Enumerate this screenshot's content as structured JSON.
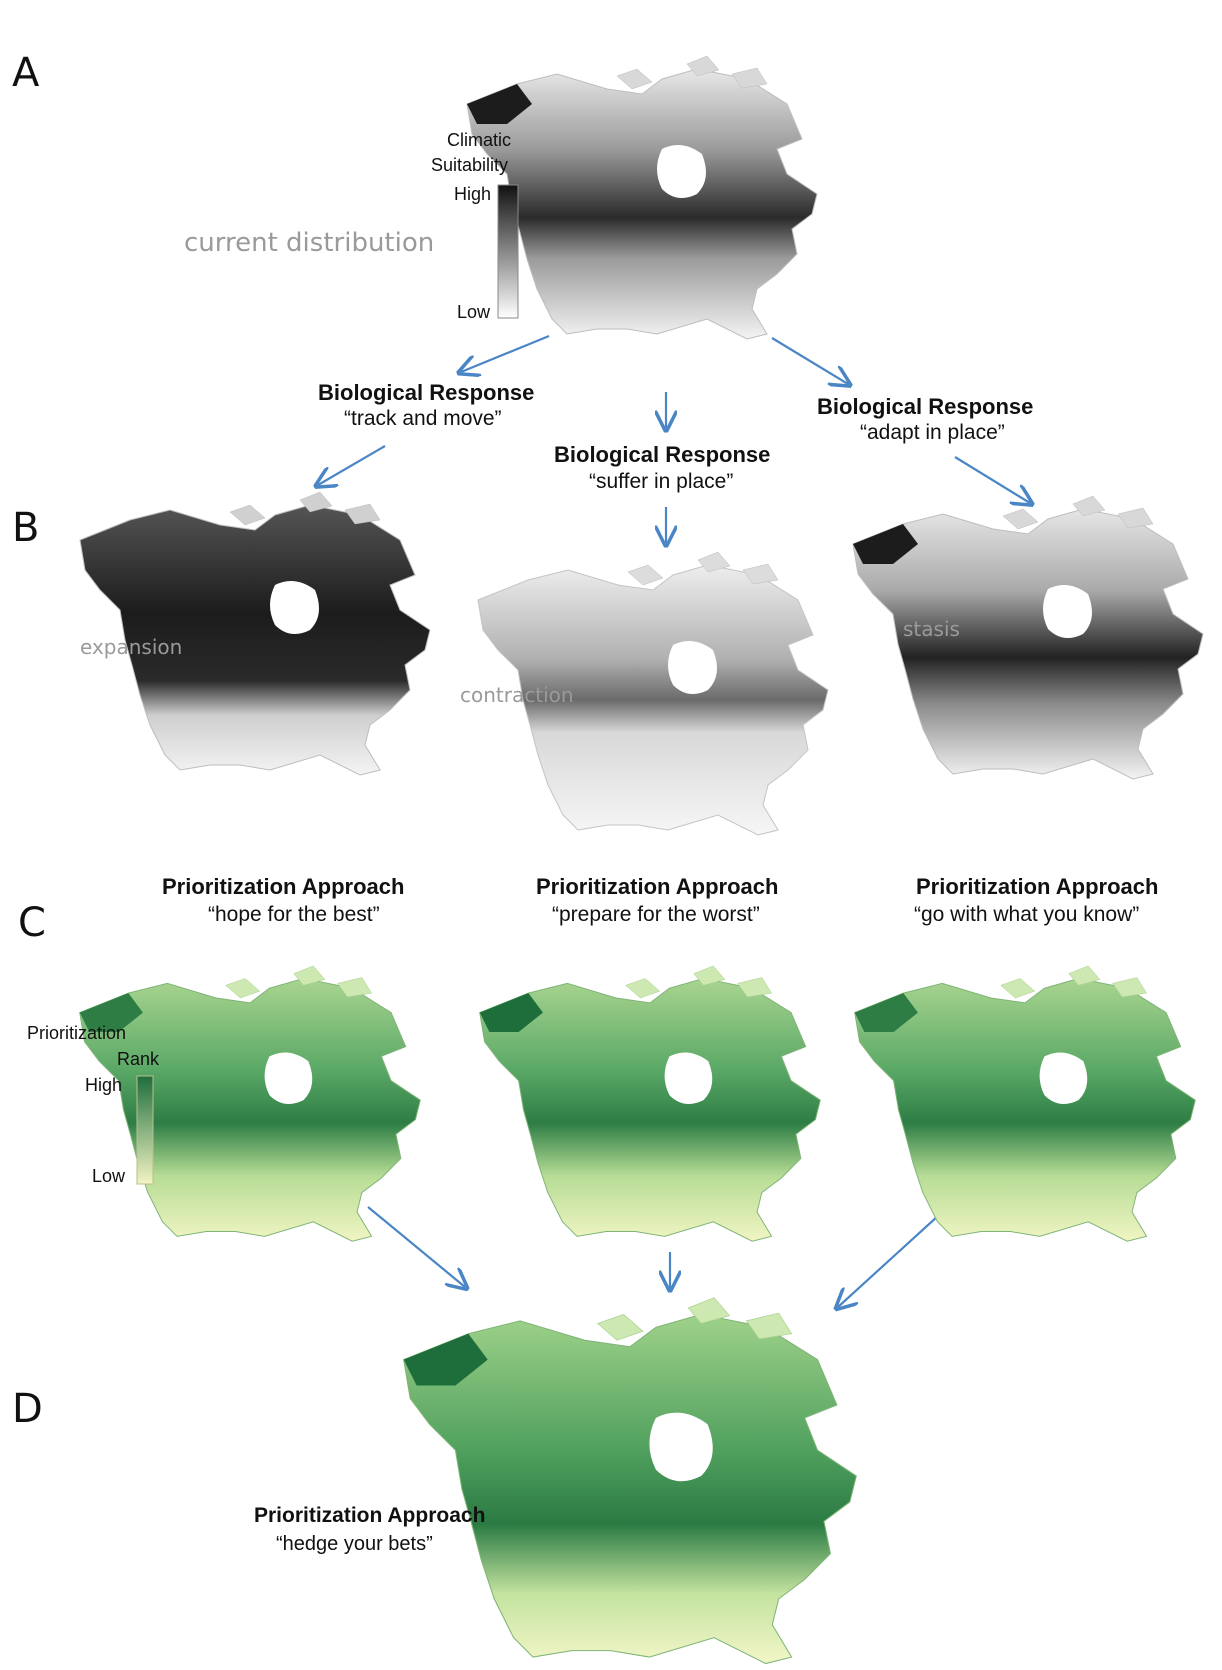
{
  "panels": {
    "a": {
      "letter": "A",
      "label": "current distribution",
      "legend": {
        "title_line1": "Climatic",
        "title_line2": "Suitability",
        "high": "High",
        "low": "Low"
      }
    },
    "b": {
      "letter": "B",
      "responses": [
        {
          "title": "Biological Response",
          "quote": "“track and move”",
          "map_label": "expansion"
        },
        {
          "title": "Biological Response",
          "quote": "“suffer in place”",
          "map_label": "contraction"
        },
        {
          "title": "Biological Response",
          "quote": "“adapt in place”",
          "map_label": "stasis"
        }
      ]
    },
    "c": {
      "letter": "C",
      "approaches": [
        {
          "title": "Prioritization Approach",
          "quote": "“hope for the best”"
        },
        {
          "title": "Prioritization Approach",
          "quote": "“prepare for the worst”"
        },
        {
          "title": "Prioritization Approach",
          "quote": "“go with what you know”"
        }
      ],
      "legend": {
        "title_line1": "Prioritization",
        "title_line2": "Rank",
        "high": "High",
        "low": "Low"
      }
    },
    "d": {
      "letter": "D",
      "approach": {
        "title": "Prioritization Approach",
        "quote": "“hedge your bets”"
      }
    }
  },
  "colors": {
    "arrow": "#4a86c5",
    "suitability_high": "#111111",
    "suitability_low": "#ffffff",
    "rank_high": "#1e6e3c",
    "rank_low": "#f3f4c4",
    "label_grey": "#9a9a9a"
  }
}
